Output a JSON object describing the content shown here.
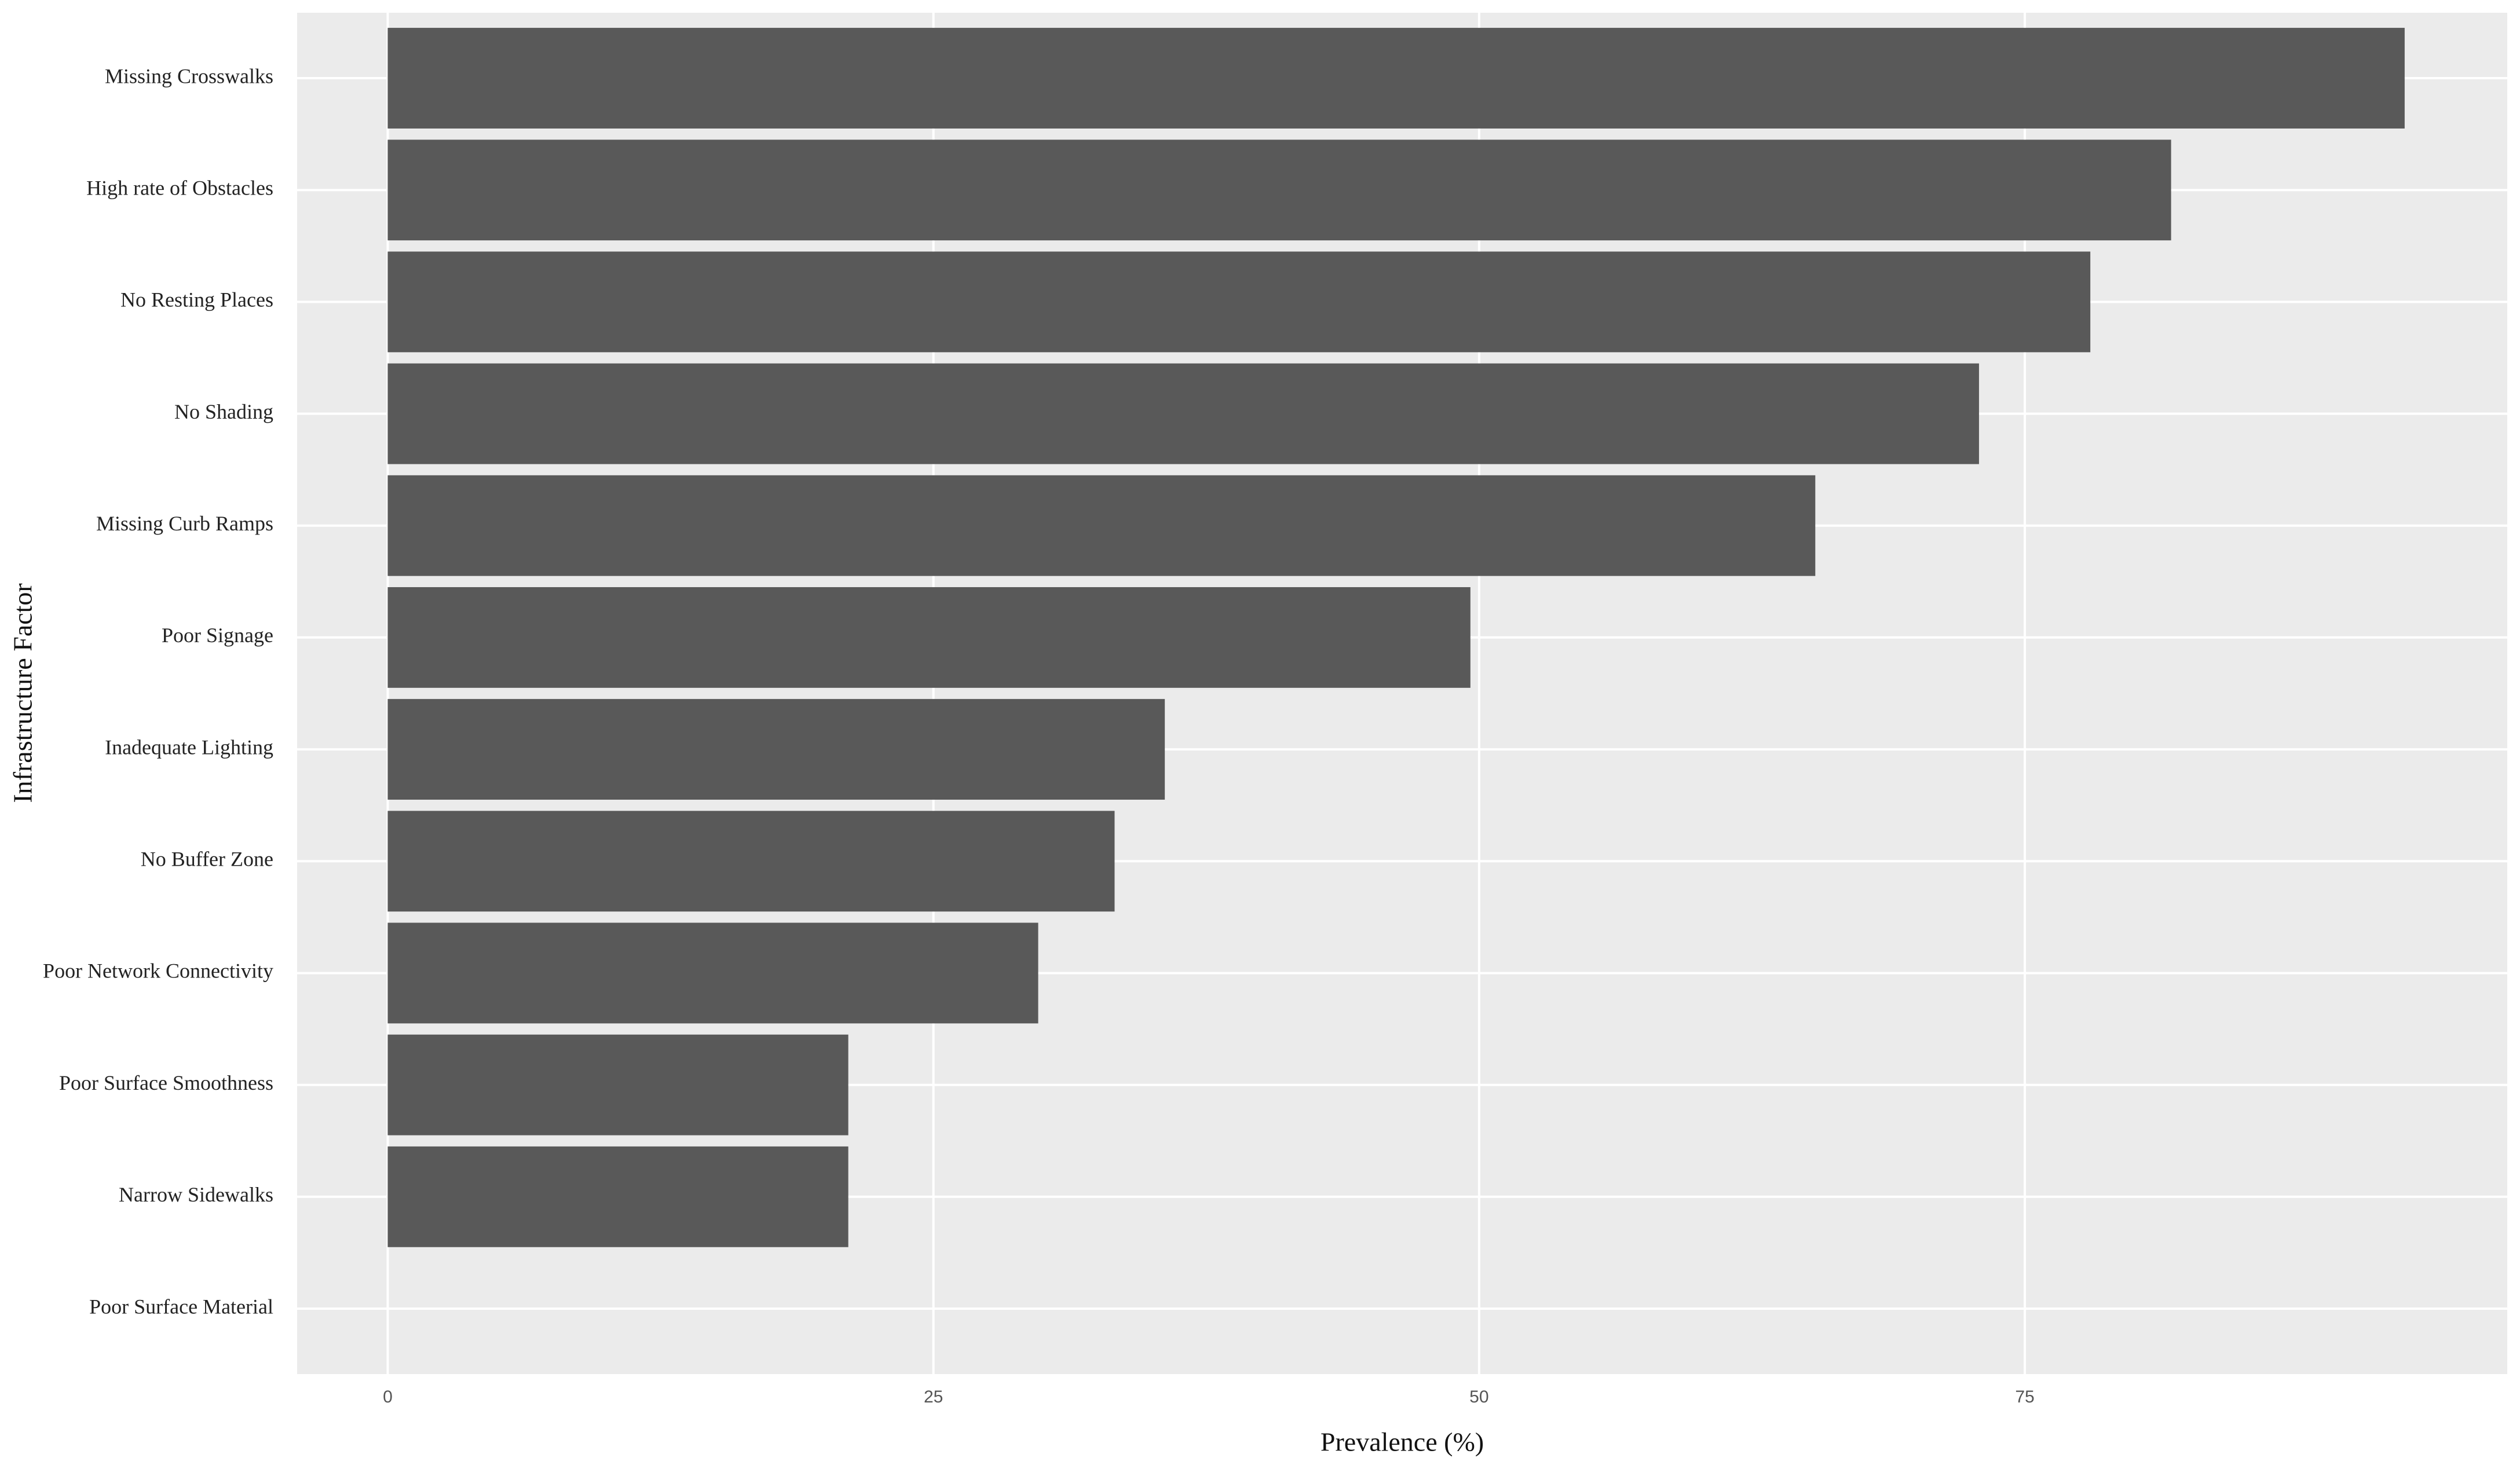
{
  "chart_data": {
    "type": "bar",
    "orientation": "horizontal",
    "x_label": "Prevalence (%)",
    "y_label": "Infrastructure Factor",
    "categories": [
      "Missing Crosswalks",
      "High rate of Obstacles",
      "No Resting Places",
      "No Shading",
      "Missing Curb Ramps",
      "Poor Signage",
      "Inadequate Lighting",
      "No Buffer Zone",
      "Poor Network Connectivity",
      "Poor Surface Smoothness",
      "Narrow Sidewalks",
      "Poor Surface Material"
    ],
    "values": [
      92.4,
      81.7,
      78.0,
      72.9,
      65.4,
      49.6,
      35.6,
      33.3,
      29.8,
      21.1,
      21.1,
      0
    ],
    "color": "#595959",
    "xlim": [
      -4.15,
      97.1
    ],
    "xticks": [
      0,
      25,
      50,
      75
    ],
    "grid": true
  }
}
